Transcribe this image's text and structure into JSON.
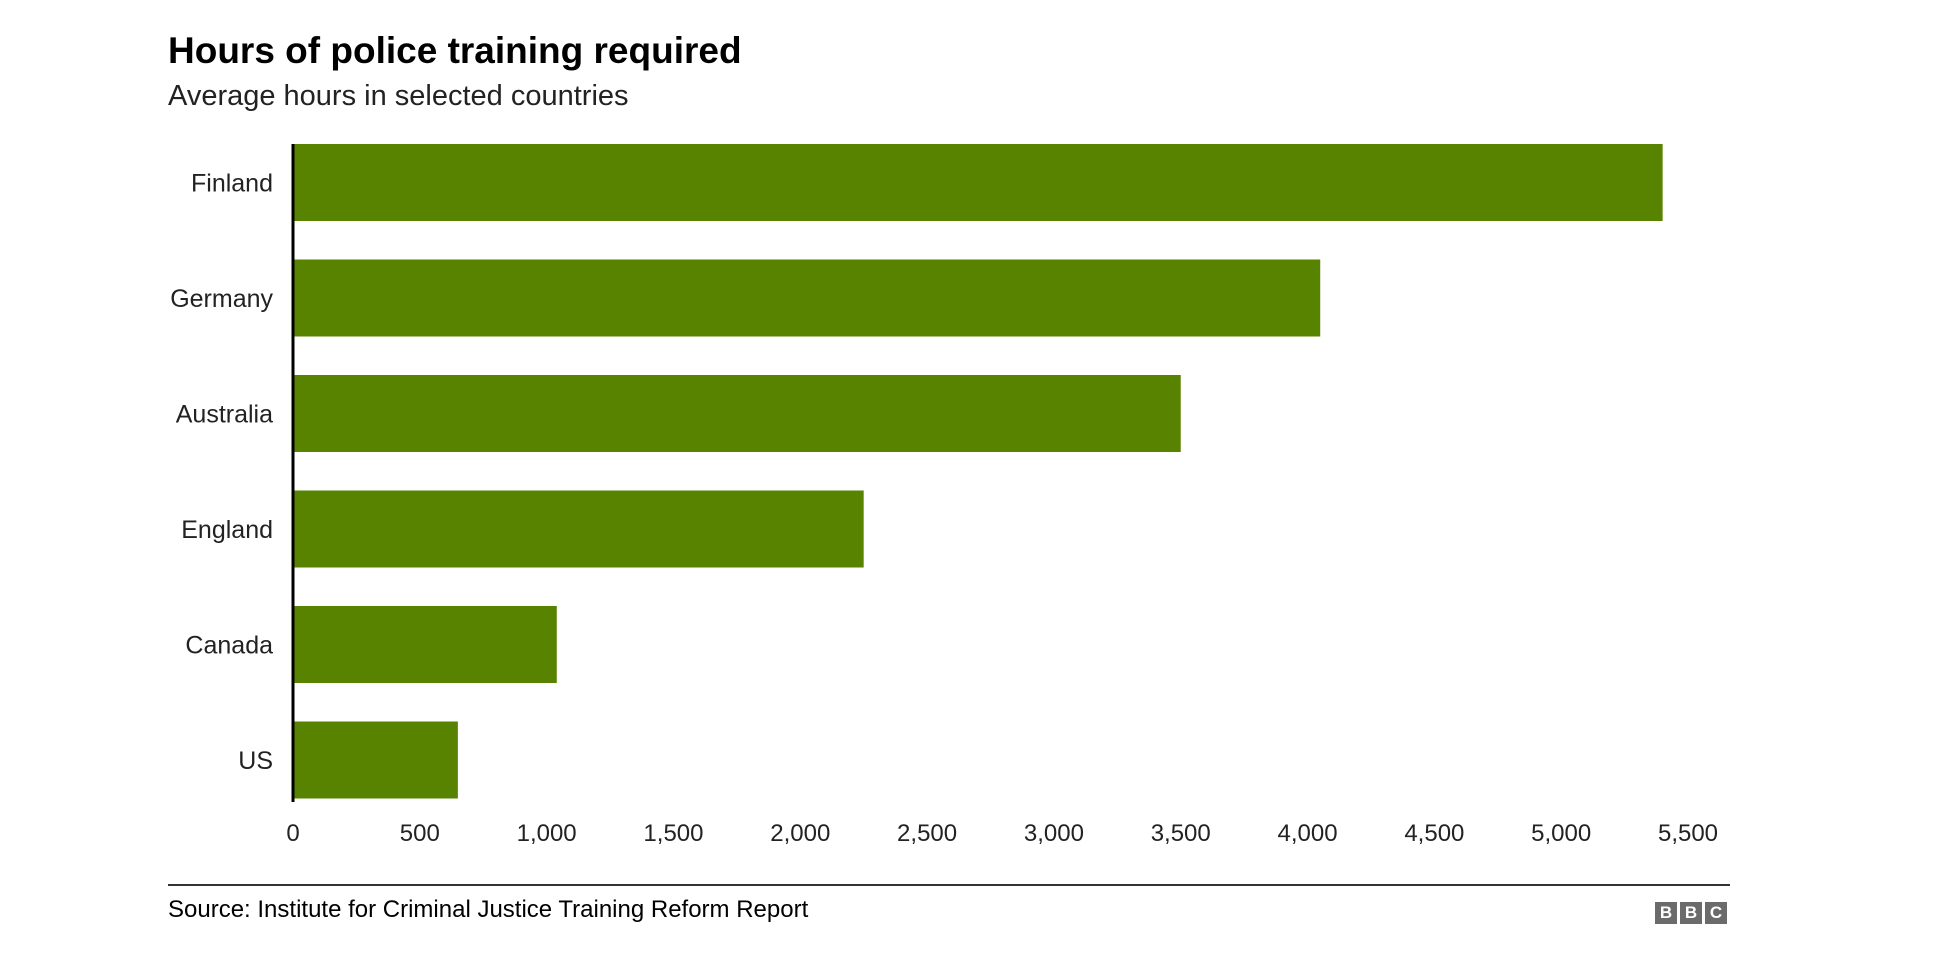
{
  "chart_data": {
    "type": "bar",
    "orientation": "horizontal",
    "title": "Hours of police training required",
    "subtitle": "Average hours in selected countries",
    "categories": [
      "Finland",
      "Germany",
      "Australia",
      "England",
      "Canada",
      "US"
    ],
    "values": [
      5400,
      4050,
      3500,
      2250,
      1040,
      650
    ],
    "xlim": [
      0,
      5500
    ],
    "xticks": [
      0,
      500,
      1000,
      1500,
      2000,
      2500,
      3000,
      3500,
      4000,
      4500,
      5000,
      5500
    ],
    "xtick_labels": [
      "0",
      "500",
      "1,000",
      "1,500",
      "2,000",
      "2,500",
      "3,000",
      "3,500",
      "4,000",
      "4,500",
      "5,000",
      "5,500"
    ],
    "xlabel": "",
    "ylabel": "",
    "grid": false,
    "bar_color": "#588300"
  },
  "footer": {
    "source": "Source: Institute for Criminal Justice Training Reform Report",
    "logo_letters": [
      "B",
      "B",
      "C"
    ]
  }
}
